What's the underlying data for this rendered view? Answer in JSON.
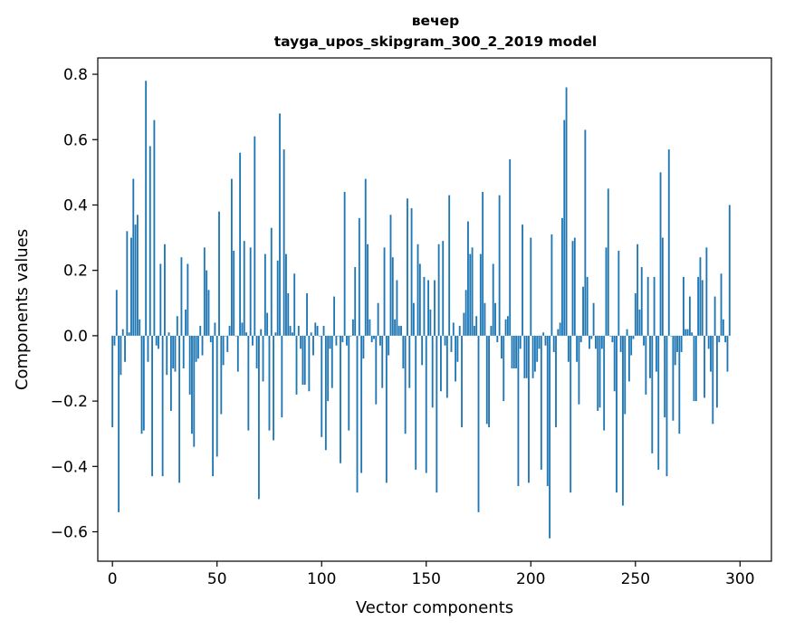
{
  "chart_data": {
    "type": "bar",
    "title": "вечер",
    "subtitle": "tayga_upos_skipgram_300_2_2019 model",
    "xlabel": "Vector components",
    "ylabel": "Components values",
    "xlim": [
      -7,
      315
    ],
    "ylim": [
      -0.69,
      0.85
    ],
    "xticks": [
      0,
      50,
      100,
      150,
      200,
      250,
      300
    ],
    "xtick_labels": [
      "0",
      "50",
      "100",
      "150",
      "200",
      "250",
      "300"
    ],
    "yticks": [
      -0.6,
      -0.4,
      -0.2,
      0.0,
      0.2,
      0.4,
      0.6,
      0.8
    ],
    "ytick_labels": [
      "−0.6",
      "−0.4",
      "−0.2",
      "0.0",
      "0.2",
      "0.4",
      "0.6",
      "0.8"
    ],
    "bar_color": "#1f77b4",
    "values": [
      -0.28,
      -0.03,
      0.14,
      -0.54,
      -0.12,
      0.02,
      -0.08,
      0.32,
      0.01,
      0.3,
      0.48,
      0.34,
      0.37,
      0.05,
      -0.3,
      -0.29,
      0.78,
      -0.08,
      0.58,
      -0.43,
      0.66,
      -0.03,
      -0.04,
      0.22,
      -0.43,
      0.28,
      -0.12,
      0.01,
      -0.23,
      -0.1,
      -0.11,
      0.06,
      -0.45,
      0.24,
      -0.1,
      0.08,
      0.22,
      -0.18,
      -0.3,
      -0.34,
      -0.08,
      -0.07,
      0.03,
      -0.06,
      0.27,
      0.2,
      0.14,
      -0.02,
      -0.43,
      0.04,
      -0.37,
      0.38,
      -0.24,
      -0.09,
      0.0,
      -0.05,
      0.03,
      0.48,
      0.26,
      0.0,
      -0.11,
      0.56,
      0.04,
      0.29,
      0.01,
      -0.29,
      0.27,
      -0.03,
      0.61,
      -0.1,
      -0.5,
      0.02,
      -0.14,
      0.25,
      0.07,
      -0.29,
      0.33,
      -0.32,
      0.01,
      0.23,
      0.68,
      -0.25,
      0.57,
      0.25,
      0.13,
      0.03,
      0.01,
      0.19,
      -0.18,
      0.03,
      -0.04,
      -0.15,
      -0.15,
      0.13,
      -0.17,
      0.01,
      -0.06,
      0.04,
      0.03,
      0.0,
      -0.31,
      0.03,
      -0.35,
      -0.2,
      -0.04,
      -0.16,
      0.12,
      -0.03,
      0.0,
      -0.39,
      -0.02,
      0.44,
      -0.03,
      -0.29,
      0.0,
      0.05,
      0.21,
      -0.48,
      0.36,
      -0.42,
      -0.07,
      0.48,
      0.28,
      0.05,
      -0.02,
      -0.01,
      -0.21,
      0.1,
      -0.03,
      -0.16,
      0.27,
      -0.45,
      -0.06,
      0.37,
      0.24,
      0.05,
      0.17,
      0.03,
      0.03,
      -0.1,
      -0.3,
      0.42,
      -0.16,
      0.39,
      0.1,
      -0.41,
      0.28,
      0.22,
      -0.09,
      0.18,
      -0.42,
      0.17,
      0.08,
      -0.22,
      0.17,
      -0.48,
      0.28,
      -0.17,
      0.29,
      -0.03,
      -0.19,
      0.43,
      -0.05,
      0.04,
      -0.14,
      -0.08,
      0.03,
      -0.28,
      0.07,
      0.14,
      0.35,
      0.25,
      0.27,
      0.03,
      0.06,
      -0.54,
      0.25,
      0.44,
      0.1,
      -0.27,
      -0.28,
      0.03,
      0.22,
      0.1,
      -0.02,
      0.43,
      -0.07,
      -0.2,
      0.05,
      0.06,
      0.54,
      -0.1,
      -0.1,
      -0.1,
      -0.46,
      -0.04,
      0.34,
      -0.13,
      -0.13,
      -0.45,
      0.3,
      -0.13,
      -0.11,
      -0.08,
      -0.04,
      -0.41,
      0.01,
      -0.03,
      -0.46,
      -0.62,
      0.31,
      -0.05,
      -0.28,
      0.02,
      0.04,
      0.36,
      0.66,
      0.76,
      -0.08,
      -0.48,
      0.29,
      0.3,
      -0.08,
      -0.21,
      -0.02,
      0.15,
      0.63,
      0.18,
      -0.04,
      -0.01,
      0.1,
      -0.04,
      -0.23,
      -0.22,
      -0.04,
      -0.29,
      0.27,
      0.45,
      0.0,
      -0.02,
      -0.17,
      -0.48,
      0.26,
      -0.05,
      -0.52,
      -0.24,
      0.02,
      -0.14,
      -0.06,
      -0.01,
      0.13,
      0.28,
      0.08,
      0.21,
      -0.03,
      -0.18,
      0.18,
      -0.13,
      -0.36,
      0.18,
      -0.11,
      -0.41,
      0.5,
      0.3,
      -0.25,
      -0.43,
      0.57,
      0.0,
      -0.26,
      -0.09,
      -0.05,
      -0.3,
      -0.05,
      0.18,
      0.02,
      0.02,
      0.12,
      0.01,
      -0.2,
      -0.2,
      0.18,
      0.24,
      0.17,
      -0.19,
      0.27,
      -0.04,
      -0.11,
      -0.27,
      0.12,
      -0.22,
      -0.02,
      0.19,
      0.05,
      -0.02,
      -0.11,
      0.4
    ]
  }
}
